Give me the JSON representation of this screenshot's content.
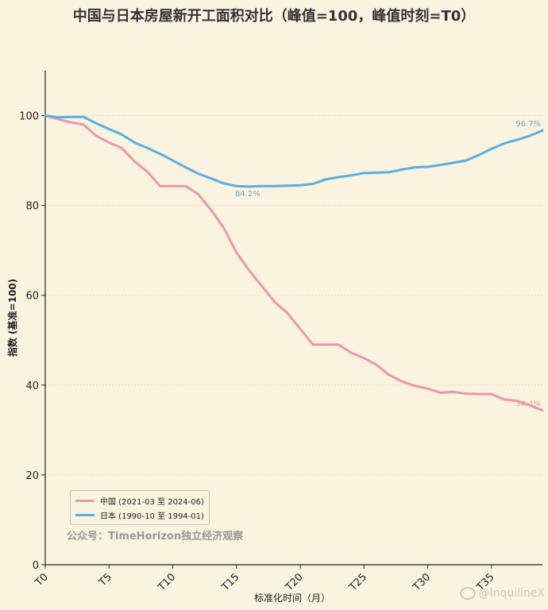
{
  "chart_data": {
    "type": "line",
    "title": "中国与日本房屋新开工面积对比（峰值=100，峰值时刻=T0）",
    "xlabel": "标准化时间（月）",
    "ylabel": "指数 (基准=100)",
    "xlim": [
      0,
      39
    ],
    "ylim": [
      0,
      110
    ],
    "x_ticks": [
      0,
      5,
      10,
      15,
      20,
      25,
      30,
      35
    ],
    "x_tick_labels": [
      "T0",
      "T5",
      "T10",
      "T15",
      "T20",
      "T25",
      "T30",
      "T35"
    ],
    "y_ticks": [
      0,
      20,
      40,
      60,
      80,
      100
    ],
    "y_tick_labels": [
      "0",
      "20",
      "40",
      "60",
      "80",
      "100"
    ],
    "grid": "horizontal",
    "legend_position": "lower-left",
    "x": [
      0,
      1,
      2,
      3,
      4,
      5,
      6,
      7,
      8,
      9,
      10,
      11,
      12,
      13,
      14,
      15,
      16,
      17,
      18,
      19,
      20,
      21,
      22,
      23,
      24,
      25,
      26,
      27,
      28,
      29,
      30,
      31,
      32,
      33,
      34,
      35,
      36,
      37,
      38,
      39
    ],
    "series": [
      {
        "name": "中国 (2021-03 至 2024-06)",
        "color": "#e899aa",
        "values": [
          100,
          99.2,
          98.5,
          98,
          95.5,
          94,
          92.8,
          89.8,
          87.5,
          84.3,
          84.3,
          84.3,
          82.5,
          79,
          75,
          69.5,
          65.5,
          62,
          58.5,
          56,
          52.5,
          49,
          49,
          49,
          47.2,
          46,
          44.5,
          42.2,
          40.8,
          39.8,
          39.2,
          38.3,
          38.5,
          38.1,
          38,
          38,
          36.8,
          36.5,
          35.5,
          34.4
        ],
        "end_label": "34.4%"
      },
      {
        "name": "日本 (1990-10 至 1994-01)",
        "color": "#5aaee2",
        "values": [
          100,
          99.6,
          99.7,
          99.7,
          98.3,
          97,
          95.8,
          94,
          92.8,
          91.5,
          90,
          88.5,
          87.1,
          86,
          84.9,
          84.3,
          84.2,
          84.3,
          84.3,
          84.4,
          84.5,
          84.8,
          85.8,
          86.3,
          86.7,
          87.2,
          87.3,
          87.4,
          88,
          88.5,
          88.6,
          89,
          89.5,
          90,
          91.2,
          92.6,
          93.8,
          94.6,
          95.5,
          96.7
        ],
        "end_label": "96.7%",
        "min_label": "84.2%",
        "min_index": 16
      }
    ]
  },
  "source_note": "公众号：TimeHorizon独立经济观察",
  "watermark": "@InquilineX"
}
